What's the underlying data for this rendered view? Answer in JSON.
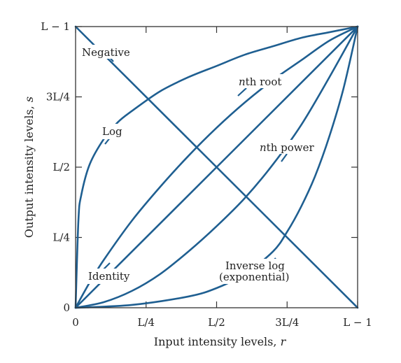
{
  "chart_data": {
    "type": "line",
    "xlabel": "Input intensity levels, r",
    "ylabel": "Output intensity levels, s",
    "xlim": [
      0,
      1
    ],
    "ylim": [
      0,
      1
    ],
    "grid": false,
    "line_color": "#1f5f91",
    "x_ticks": [
      {
        "value": 0,
        "label": "0"
      },
      {
        "value": 0.25,
        "label": "L/4"
      },
      {
        "value": 0.5,
        "label": "L/2"
      },
      {
        "value": 0.75,
        "label": "3L/4"
      },
      {
        "value": 1,
        "label": "L − 1"
      }
    ],
    "y_ticks": [
      {
        "value": 0,
        "label": "0"
      },
      {
        "value": 0.25,
        "label": "L/4"
      },
      {
        "value": 0.5,
        "label": "L/2"
      },
      {
        "value": 0.75,
        "label": "3L/4"
      },
      {
        "value": 1,
        "label": "L − 1"
      }
    ],
    "series": [
      {
        "name": "Negative",
        "x": [
          0,
          1
        ],
        "y": [
          1,
          0
        ]
      },
      {
        "name": "Log",
        "x": [
          0,
          0.01,
          0.02,
          0.05,
          0.1,
          0.15,
          0.2,
          0.3,
          0.4,
          0.5,
          0.6,
          0.7,
          0.8,
          0.9,
          1.0
        ],
        "y": [
          0,
          0.31,
          0.4,
          0.51,
          0.6,
          0.66,
          0.7,
          0.77,
          0.82,
          0.86,
          0.9,
          0.93,
          0.96,
          0.98,
          1.0
        ]
      },
      {
        "name": "nth root",
        "x": [
          0,
          0.05,
          0.1,
          0.2,
          0.3,
          0.4,
          0.5,
          0.6,
          0.7,
          0.8,
          0.9,
          1.0
        ],
        "y": [
          0,
          0.09,
          0.17,
          0.31,
          0.43,
          0.54,
          0.64,
          0.73,
          0.81,
          0.88,
          0.95,
          1.0
        ]
      },
      {
        "name": "Identity",
        "x": [
          0,
          1
        ],
        "y": [
          0,
          1
        ]
      },
      {
        "name": "nth power",
        "x": [
          0,
          0.1,
          0.2,
          0.3,
          0.4,
          0.5,
          0.6,
          0.7,
          0.8,
          0.9,
          1.0
        ],
        "y": [
          0,
          0.02,
          0.06,
          0.12,
          0.2,
          0.29,
          0.39,
          0.51,
          0.65,
          0.82,
          1.0
        ]
      },
      {
        "name": "Inverse log (exponential)",
        "x": [
          0,
          0.2,
          0.4,
          0.5,
          0.6,
          0.7,
          0.75,
          0.8,
          0.85,
          0.9,
          0.95,
          1.0
        ],
        "y": [
          0,
          0.01,
          0.04,
          0.07,
          0.12,
          0.2,
          0.27,
          0.36,
          0.47,
          0.61,
          0.78,
          1.0
        ]
      }
    ],
    "labels": {
      "negative": "Negative",
      "log": "Log",
      "nth_root_n": "n",
      "nth_root_rest": "th root",
      "nth_power_n": "n",
      "nth_power_rest": "th power",
      "identity": "Identity",
      "inverse_log_line1": "Inverse log",
      "inverse_log_line2": "(exponential)",
      "xlabel_text": "Input intensity levels, ",
      "xlabel_var": "r",
      "ylabel_text": "Output intensity levels, ",
      "ylabel_var": "s"
    }
  }
}
